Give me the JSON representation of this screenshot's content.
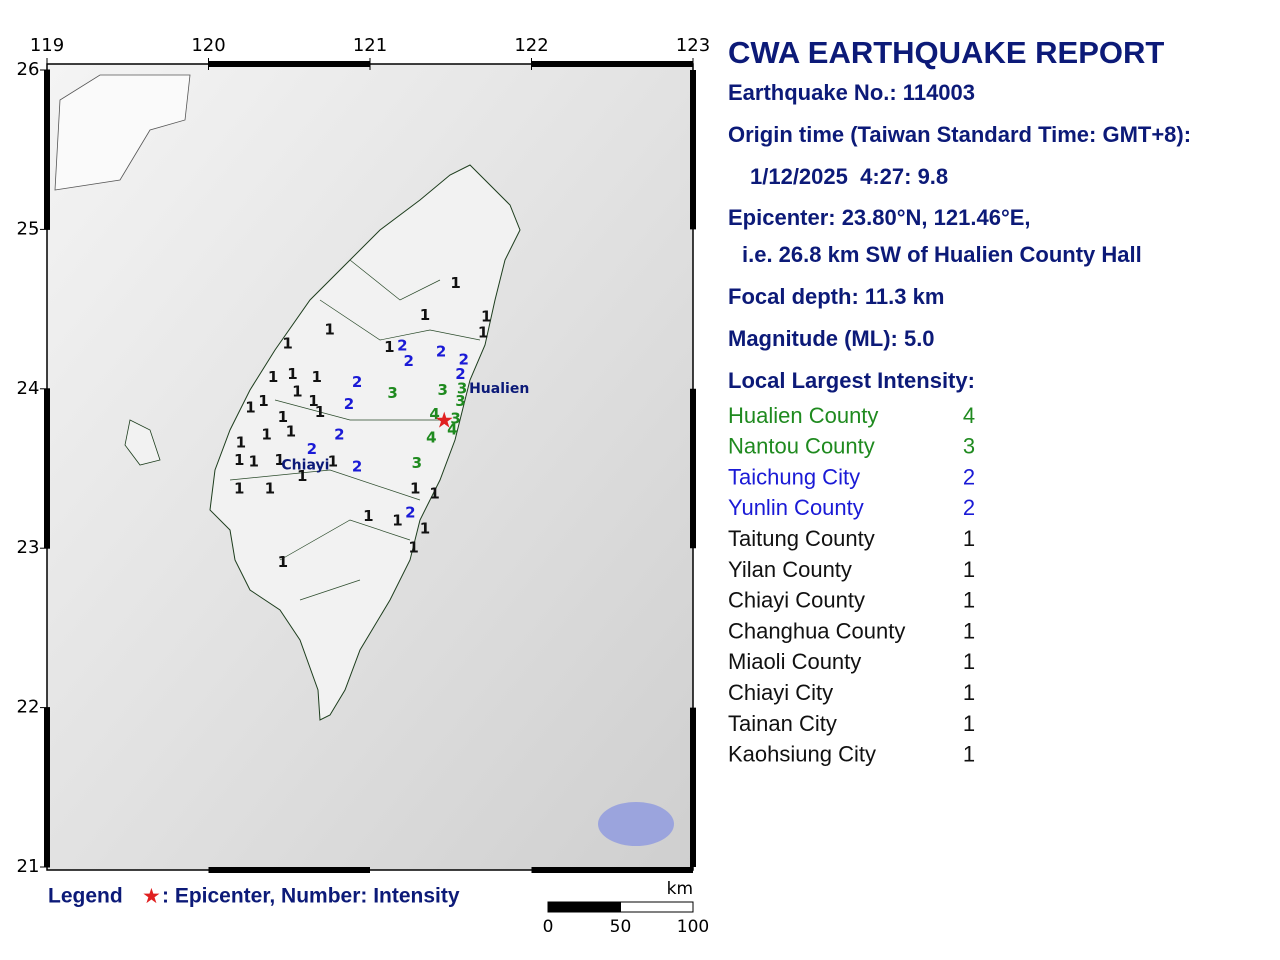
{
  "map": {
    "lonlim": [
      119,
      123
    ],
    "latlim": [
      21,
      26
    ],
    "lon_ticks": [
      119,
      120,
      121,
      122,
      123
    ],
    "lat_ticks": [
      21,
      22,
      23,
      24,
      25,
      26
    ],
    "intensity_colors": {
      "1": "#111111",
      "2": "#1a1ad6",
      "3": "#1f8a1f",
      "4": "#1f8a1f"
    },
    "epicenter": {
      "lat": 23.8,
      "lon": 121.46
    },
    "places": [
      {
        "name": "Chiayi",
        "lat": 23.52,
        "lon": 120.6
      },
      {
        "name": "Hualien",
        "lat": 24.0,
        "lon": 121.8
      }
    ],
    "stations": [
      {
        "lat": 24.66,
        "lon": 121.53,
        "intensity": 1
      },
      {
        "lat": 24.46,
        "lon": 121.34,
        "intensity": 1
      },
      {
        "lat": 24.45,
        "lon": 121.72,
        "intensity": 1
      },
      {
        "lat": 24.35,
        "lon": 121.7,
        "intensity": 1
      },
      {
        "lat": 24.37,
        "lon": 120.75,
        "intensity": 1
      },
      {
        "lat": 24.26,
        "lon": 121.12,
        "intensity": 1
      },
      {
        "lat": 24.28,
        "lon": 120.49,
        "intensity": 1
      },
      {
        "lat": 24.07,
        "lon": 120.4,
        "intensity": 1
      },
      {
        "lat": 24.09,
        "lon": 120.52,
        "intensity": 1
      },
      {
        "lat": 24.07,
        "lon": 120.67,
        "intensity": 1
      },
      {
        "lat": 23.98,
        "lon": 120.55,
        "intensity": 1
      },
      {
        "lat": 23.92,
        "lon": 120.34,
        "intensity": 1
      },
      {
        "lat": 23.88,
        "lon": 120.26,
        "intensity": 1
      },
      {
        "lat": 23.92,
        "lon": 120.65,
        "intensity": 1
      },
      {
        "lat": 23.85,
        "lon": 120.69,
        "intensity": 1
      },
      {
        "lat": 23.82,
        "lon": 120.46,
        "intensity": 1
      },
      {
        "lat": 23.73,
        "lon": 120.51,
        "intensity": 1
      },
      {
        "lat": 23.71,
        "lon": 120.36,
        "intensity": 1
      },
      {
        "lat": 23.66,
        "lon": 120.2,
        "intensity": 1
      },
      {
        "lat": 23.55,
        "lon": 120.19,
        "intensity": 1
      },
      {
        "lat": 23.54,
        "lon": 120.28,
        "intensity": 1
      },
      {
        "lat": 23.55,
        "lon": 120.44,
        "intensity": 1
      },
      {
        "lat": 23.54,
        "lon": 120.77,
        "intensity": 1
      },
      {
        "lat": 23.45,
        "lon": 120.58,
        "intensity": 1
      },
      {
        "lat": 23.37,
        "lon": 120.38,
        "intensity": 1
      },
      {
        "lat": 23.37,
        "lon": 120.19,
        "intensity": 1
      },
      {
        "lat": 23.37,
        "lon": 121.28,
        "intensity": 1
      },
      {
        "lat": 23.34,
        "lon": 121.4,
        "intensity": 1
      },
      {
        "lat": 23.2,
        "lon": 120.99,
        "intensity": 1
      },
      {
        "lat": 23.17,
        "lon": 121.17,
        "intensity": 1
      },
      {
        "lat": 23.12,
        "lon": 121.34,
        "intensity": 1
      },
      {
        "lat": 23.0,
        "lon": 121.27,
        "intensity": 1
      },
      {
        "lat": 22.91,
        "lon": 120.46,
        "intensity": 1
      },
      {
        "lat": 24.27,
        "lon": 121.2,
        "intensity": 2
      },
      {
        "lat": 24.23,
        "lon": 121.44,
        "intensity": 2
      },
      {
        "lat": 24.17,
        "lon": 121.24,
        "intensity": 2
      },
      {
        "lat": 24.18,
        "lon": 121.58,
        "intensity": 2
      },
      {
        "lat": 24.09,
        "lon": 121.56,
        "intensity": 2
      },
      {
        "lat": 24.04,
        "lon": 120.92,
        "intensity": 2
      },
      {
        "lat": 23.9,
        "lon": 120.87,
        "intensity": 2
      },
      {
        "lat": 23.71,
        "lon": 120.81,
        "intensity": 2
      },
      {
        "lat": 23.62,
        "lon": 120.64,
        "intensity": 2
      },
      {
        "lat": 23.51,
        "lon": 120.92,
        "intensity": 2
      },
      {
        "lat": 23.22,
        "lon": 121.25,
        "intensity": 2
      },
      {
        "lat": 23.97,
        "lon": 121.14,
        "intensity": 3
      },
      {
        "lat": 23.99,
        "lon": 121.45,
        "intensity": 3
      },
      {
        "lat": 24.0,
        "lon": 121.57,
        "intensity": 3
      },
      {
        "lat": 23.92,
        "lon": 121.56,
        "intensity": 3
      },
      {
        "lat": 23.81,
        "lon": 121.53,
        "intensity": 3
      },
      {
        "lat": 23.53,
        "lon": 121.29,
        "intensity": 3
      },
      {
        "lat": 23.84,
        "lon": 121.4,
        "intensity": 4
      },
      {
        "lat": 23.69,
        "lon": 121.38,
        "intensity": 4
      },
      {
        "lat": 23.74,
        "lon": 121.51,
        "intensity": 4
      }
    ],
    "scale_ticks": [
      0,
      50,
      100
    ],
    "scale_unit": "km",
    "legend_title": "Legend",
    "legend_text": ": Epicenter, Number: Intensity"
  },
  "report": {
    "title": "CWA EARTHQUAKE REPORT",
    "lines": [
      "Earthquake No.: 114003",
      "Origin time (Taiwan Standard Time: GMT+8):",
      "1/12/2025  4:27: 9.8",
      "Epicenter: 23.80°N, 121.46°E,",
      "i.e. 26.8 km SW of Hualien County Hall",
      "Focal depth: 11.3 km",
      "Magnitude (ML): 5.0",
      "Local Largest Intensity:"
    ],
    "local": [
      {
        "name": "Hualien County",
        "intensity": 4
      },
      {
        "name": "Nantou County",
        "intensity": 3
      },
      {
        "name": "Taichung City",
        "intensity": 2
      },
      {
        "name": "Yunlin County",
        "intensity": 2
      },
      {
        "name": "Taitung County",
        "intensity": 1
      },
      {
        "name": "Yilan County",
        "intensity": 1
      },
      {
        "name": "Chiayi County",
        "intensity": 1
      },
      {
        "name": "Changhua County",
        "intensity": 1
      },
      {
        "name": "Miaoli County",
        "intensity": 1
      },
      {
        "name": "Chiayi City",
        "intensity": 1
      },
      {
        "name": "Tainan City",
        "intensity": 1
      },
      {
        "name": "Kaohsiung City",
        "intensity": 1
      }
    ]
  }
}
